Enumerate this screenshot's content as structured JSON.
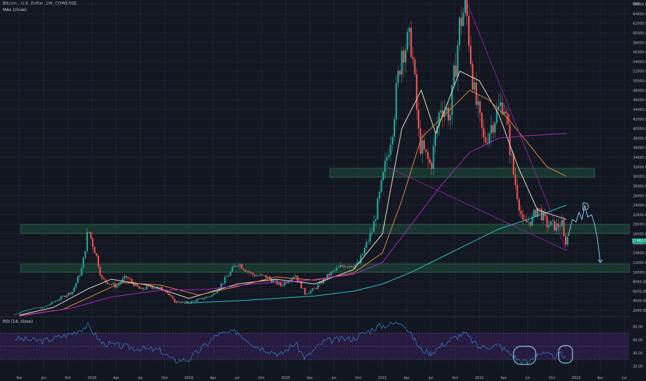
{
  "header": {
    "title": "Bitcoin / U.S. Dollar, 1W, COINBASE",
    "ma_label": "MAs (close)",
    "rsi_label": "RSI (14, close)"
  },
  "price_axis": {
    "currency": "USD",
    "ticks": [
      "66000.00",
      "64000.00",
      "62000.00",
      "60000.00",
      "58000.00",
      "56000.00",
      "54000.00",
      "52000.00",
      "50000.00",
      "48000.00",
      "46000.00",
      "44000.00",
      "42000.00",
      "40000.00",
      "38000.00",
      "36000.00",
      "34000.00",
      "32000.00",
      "30000.00",
      "28000.00",
      "26000.00",
      "24000.00",
      "22000.00",
      "20000.00",
      "18000.00",
      "16000.00",
      "14000.00",
      "12000.00",
      "10000.00",
      "8000.00",
      "6000.00",
      "4000.00",
      "2000.00"
    ],
    "current_price": "17460.00"
  },
  "rsi_axis": {
    "ticks": [
      "80.00",
      "60.00",
      "40.00",
      "20.00"
    ]
  },
  "time_axis": {
    "labels": [
      "Apr",
      "Jul",
      "Oct",
      "2018",
      "Apr",
      "Jul",
      "Oct",
      "2019",
      "Apr",
      "Jul",
      "Oct",
      "2020",
      "Apr",
      "Jul",
      "Oct",
      "2021",
      "Apr",
      "Jul",
      "Oct",
      "2022",
      "Apr",
      "Jul",
      "Oct",
      "2023",
      "Apr",
      "Jul"
    ]
  },
  "colors": {
    "bg": "#131722",
    "grid": "#1f2430",
    "up": "#26a69a",
    "down": "#ef5350",
    "ma_white": "#e8e4d0",
    "ma_orange": "#e6883a",
    "ma_magenta": "#b026c9",
    "ma_teal": "#27c6c6",
    "zone": "#1e4a3a",
    "rsi_line": "#2f7fc1",
    "rsi_band": "#3b1f5c",
    "drawing": "#8ec9e8"
  },
  "chart_data": {
    "type": "candlestick",
    "y_scale": "linear",
    "ylim": [
      0,
      66000
    ],
    "interval": "1W",
    "weekly_close_path": [
      [
        2017.2,
        1150
      ],
      [
        2017.35,
        2300
      ],
      [
        2017.5,
        2600
      ],
      [
        2017.65,
        4300
      ],
      [
        2017.8,
        6000
      ],
      [
        2017.9,
        11000
      ],
      [
        2017.96,
        19000
      ],
      [
        2018.05,
        13000
      ],
      [
        2018.1,
        8500
      ],
      [
        2018.25,
        7000
      ],
      [
        2018.35,
        9000
      ],
      [
        2018.5,
        6300
      ],
      [
        2018.6,
        7000
      ],
      [
        2018.75,
        6400
      ],
      [
        2018.85,
        3800
      ],
      [
        2019.0,
        3600
      ],
      [
        2019.25,
        5200
      ],
      [
        2019.45,
        10500
      ],
      [
        2019.5,
        12000
      ],
      [
        2019.65,
        9500
      ],
      [
        2019.8,
        9000
      ],
      [
        2019.95,
        7200
      ],
      [
        2020.1,
        9500
      ],
      [
        2020.2,
        5500
      ],
      [
        2020.3,
        6500
      ],
      [
        2020.45,
        9500
      ],
      [
        2020.6,
        11500
      ],
      [
        2020.75,
        11500
      ],
      [
        2020.9,
        19000
      ],
      [
        2021.0,
        29000
      ],
      [
        2021.1,
        40000
      ],
      [
        2021.2,
        57000
      ],
      [
        2021.3,
        58000
      ],
      [
        2021.38,
        37000
      ],
      [
        2021.5,
        32000
      ],
      [
        2021.6,
        45000
      ],
      [
        2021.7,
        43000
      ],
      [
        2021.8,
        62000
      ],
      [
        2021.86,
        66000
      ],
      [
        2021.95,
        47000
      ],
      [
        2022.05,
        37000
      ],
      [
        2022.15,
        42000
      ],
      [
        2022.25,
        46000
      ],
      [
        2022.35,
        31000
      ],
      [
        2022.45,
        20000
      ],
      [
        2022.55,
        21000
      ],
      [
        2022.6,
        23500
      ],
      [
        2022.7,
        20000
      ],
      [
        2022.8,
        19500
      ],
      [
        2022.85,
        20500
      ],
      [
        2022.88,
        16000
      ],
      [
        2022.92,
        17460
      ]
    ],
    "moving_averages": [
      {
        "path": [
          [
            2017.25,
            1000
          ],
          [
            2017.6,
            2600
          ],
          [
            2017.96,
            6500
          ],
          [
            2018.2,
            8500
          ],
          [
            2018.6,
            7200
          ],
          [
            2019.0,
            4500
          ],
          [
            2019.5,
            7500
          ],
          [
            2019.9,
            8500
          ],
          [
            2020.3,
            7500
          ],
          [
            2020.7,
            10500
          ],
          [
            2021.0,
            18000
          ],
          [
            2021.2,
            40000
          ],
          [
            2021.4,
            48000
          ],
          [
            2021.55,
            39000
          ],
          [
            2021.8,
            52000
          ],
          [
            2022.0,
            50000
          ],
          [
            2022.2,
            43000
          ],
          [
            2022.4,
            32000
          ],
          [
            2022.6,
            23000
          ],
          [
            2022.9,
            21000
          ]
        ]
      },
      {
        "path": [
          [
            2017.25,
            900
          ],
          [
            2017.7,
            2200
          ],
          [
            2018.0,
            5000
          ],
          [
            2018.3,
            7800
          ],
          [
            2018.7,
            7300
          ],
          [
            2019.1,
            5200
          ],
          [
            2019.5,
            7000
          ],
          [
            2019.9,
            9000
          ],
          [
            2020.3,
            8300
          ],
          [
            2020.7,
            9800
          ],
          [
            2021.0,
            14000
          ],
          [
            2021.2,
            25000
          ],
          [
            2021.4,
            38000
          ],
          [
            2021.6,
            42000
          ],
          [
            2021.9,
            48000
          ],
          [
            2022.1,
            46000
          ],
          [
            2022.3,
            42000
          ],
          [
            2022.5,
            37000
          ],
          [
            2022.7,
            32000
          ],
          [
            2022.9,
            30000
          ]
        ]
      },
      {
        "path": [
          [
            2017.25,
            800
          ],
          [
            2017.8,
            2500
          ],
          [
            2018.2,
            4800
          ],
          [
            2018.7,
            6200
          ],
          [
            2019.2,
            6400
          ],
          [
            2019.7,
            7600
          ],
          [
            2020.2,
            8200
          ],
          [
            2020.7,
            9500
          ],
          [
            2021.0,
            12000
          ],
          [
            2021.3,
            20000
          ],
          [
            2021.6,
            28000
          ],
          [
            2021.9,
            35000
          ],
          [
            2022.2,
            38000
          ],
          [
            2022.5,
            38500
          ],
          [
            2022.9,
            39000
          ]
        ]
      },
      {
        "path": [
          [
            2018.95,
            3500
          ],
          [
            2019.5,
            4000
          ],
          [
            2019.9,
            4500
          ],
          [
            2020.3,
            5000
          ],
          [
            2020.7,
            6000
          ],
          [
            2021.0,
            7500
          ],
          [
            2021.3,
            10000
          ],
          [
            2021.6,
            13000
          ],
          [
            2021.9,
            16000
          ],
          [
            2022.2,
            19000
          ],
          [
            2022.5,
            21000
          ],
          [
            2022.9,
            24000
          ]
        ]
      }
    ],
    "rsi_path": [
      [
        2017.2,
        62
      ],
      [
        2017.5,
        58
      ],
      [
        2017.8,
        70
      ],
      [
        2017.96,
        82
      ],
      [
        2018.1,
        55
      ],
      [
        2018.4,
        48
      ],
      [
        2018.7,
        44
      ],
      [
        2018.85,
        28
      ],
      [
        2019.0,
        30
      ],
      [
        2019.3,
        68
      ],
      [
        2019.5,
        72
      ],
      [
        2019.7,
        50
      ],
      [
        2019.95,
        38
      ],
      [
        2020.1,
        55
      ],
      [
        2020.2,
        32
      ],
      [
        2020.4,
        58
      ],
      [
        2020.7,
        62
      ],
      [
        2020.95,
        80
      ],
      [
        2021.1,
        84
      ],
      [
        2021.2,
        88
      ],
      [
        2021.4,
        45
      ],
      [
        2021.5,
        40
      ],
      [
        2021.7,
        60
      ],
      [
        2021.85,
        70
      ],
      [
        2022.0,
        48
      ],
      [
        2022.2,
        52
      ],
      [
        2022.4,
        30
      ],
      [
        2022.5,
        25
      ],
      [
        2022.6,
        40
      ],
      [
        2022.75,
        35
      ],
      [
        2022.85,
        38
      ],
      [
        2022.9,
        30
      ]
    ]
  }
}
